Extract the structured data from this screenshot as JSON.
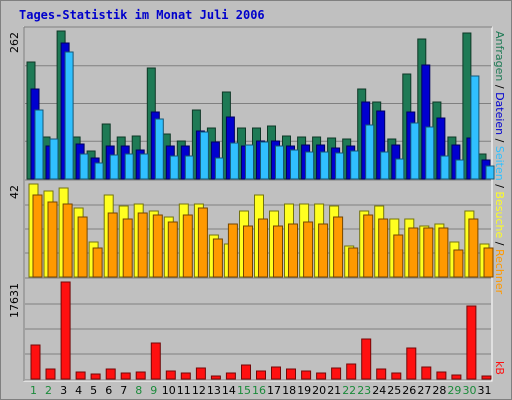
{
  "title": "Tages-Statistik im Monat Juli 2006",
  "colors": {
    "bg": "#c0c0c0",
    "anfragen": "#1e7a55",
    "dateien": "#0000d0",
    "seiten": "#30c0ff",
    "besuche": "#ffff20",
    "rechner": "#ff9900",
    "kb": "#ff1010",
    "weekday": "#000000",
    "weekend": "#1a8a3a"
  },
  "chart_data": [
    {
      "type": "bar",
      "categories": [
        "1",
        "2",
        "3",
        "4",
        "5",
        "6",
        "7",
        "8",
        "9",
        "10",
        "11",
        "12",
        "13",
        "14",
        "15",
        "16",
        "17",
        "18",
        "19",
        "20",
        "21",
        "22",
        "23",
        "24",
        "25",
        "26",
        "27",
        "28",
        "29",
        "30",
        "31"
      ],
      "weekend_days": [
        "1",
        "2",
        "8",
        "9",
        "15",
        "16",
        "22",
        "23",
        "29",
        "30"
      ],
      "ymax_label": "262",
      "ylim": [
        0,
        262
      ],
      "series": [
        {
          "name": "Anfragen",
          "values": [
            207,
            75,
            262,
            75,
            50,
            98,
            75,
            77,
            196,
            80,
            67,
            122,
            91,
            154,
            91,
            91,
            93,
            76,
            75,
            74,
            72,
            71,
            159,
            137,
            71,
            186,
            247,
            137,
            74,
            258,
            45
          ]
        },
        {
          "name": "Dateien",
          "values": [
            160,
            58,
            240,
            62,
            38,
            58,
            58,
            51,
            119,
            59,
            58,
            85,
            65,
            110,
            59,
            68,
            68,
            59,
            60,
            61,
            54,
            58,
            137,
            121,
            61,
            119,
            202,
            108,
            60,
            73,
            34
          ]
        },
        {
          "name": "Seiten",
          "values": [
            122,
            70,
            224,
            45,
            29,
            42,
            45,
            44,
            106,
            40,
            40,
            84,
            37,
            63,
            60,
            66,
            59,
            51,
            48,
            47,
            46,
            49,
            95,
            47,
            36,
            100,
            92,
            41,
            33,
            182,
            23
          ]
        }
      ],
      "legend": [
        "Anfragen",
        "Dateien",
        "Seiten"
      ]
    },
    {
      "type": "bar",
      "categories": [
        "1",
        "2",
        "3",
        "4",
        "5",
        "6",
        "7",
        "8",
        "9",
        "10",
        "11",
        "12",
        "13",
        "14",
        "15",
        "16",
        "17",
        "18",
        "19",
        "20",
        "21",
        "22",
        "23",
        "24",
        "25",
        "26",
        "27",
        "28",
        "29",
        "30",
        "31"
      ],
      "ymax_label": "42",
      "ylim": [
        0,
        42
      ],
      "series": [
        {
          "name": "Besuche",
          "values": [
            42,
            39,
            40,
            31,
            16,
            37,
            32,
            33,
            30,
            27,
            33,
            33,
            19,
            15,
            30,
            37,
            30,
            33,
            33,
            33,
            32,
            14,
            30,
            32,
            26,
            26,
            23,
            24,
            16,
            30,
            15
          ]
        },
        {
          "name": "Rechner",
          "values": [
            37,
            34,
            33,
            27,
            13,
            29,
            26,
            29,
            28,
            25,
            28,
            31,
            17,
            24,
            23,
            26,
            23,
            24,
            25,
            24,
            27,
            13,
            28,
            26,
            19,
            22,
            22,
            22,
            12,
            26,
            13
          ]
        }
      ],
      "legend": [
        "Besuche",
        "Rechner"
      ]
    },
    {
      "type": "bar",
      "categories": [
        "1",
        "2",
        "3",
        "4",
        "5",
        "6",
        "7",
        "8",
        "9",
        "10",
        "11",
        "12",
        "13",
        "14",
        "15",
        "16",
        "17",
        "18",
        "19",
        "20",
        "21",
        "22",
        "23",
        "24",
        "25",
        "26",
        "27",
        "28",
        "29",
        "30",
        "31"
      ],
      "ymax_label": "17631",
      "ylim": [
        0,
        17631
      ],
      "series": [
        {
          "name": "kB",
          "values": [
            6100,
            1900,
            17631,
            1300,
            860,
            1900,
            1100,
            1300,
            6600,
            1500,
            1150,
            1950,
            550,
            1050,
            2550,
            1500,
            2200,
            1750,
            1500,
            1150,
            2050,
            2650,
            7300,
            1850,
            1100,
            5600,
            2200,
            1200,
            700,
            13200,
            610
          ]
        }
      ],
      "legend": [
        "kB"
      ]
    }
  ],
  "legend_labels": {
    "anfragen": "Anfragen",
    "sep1": " / ",
    "dateien": "Dateien",
    "sep2": " / ",
    "seiten": "Seiten",
    "sep3": " / ",
    "besuche": "Besuche",
    "sep4": " / ",
    "rechner": "Rechner",
    "kb": "kB"
  }
}
